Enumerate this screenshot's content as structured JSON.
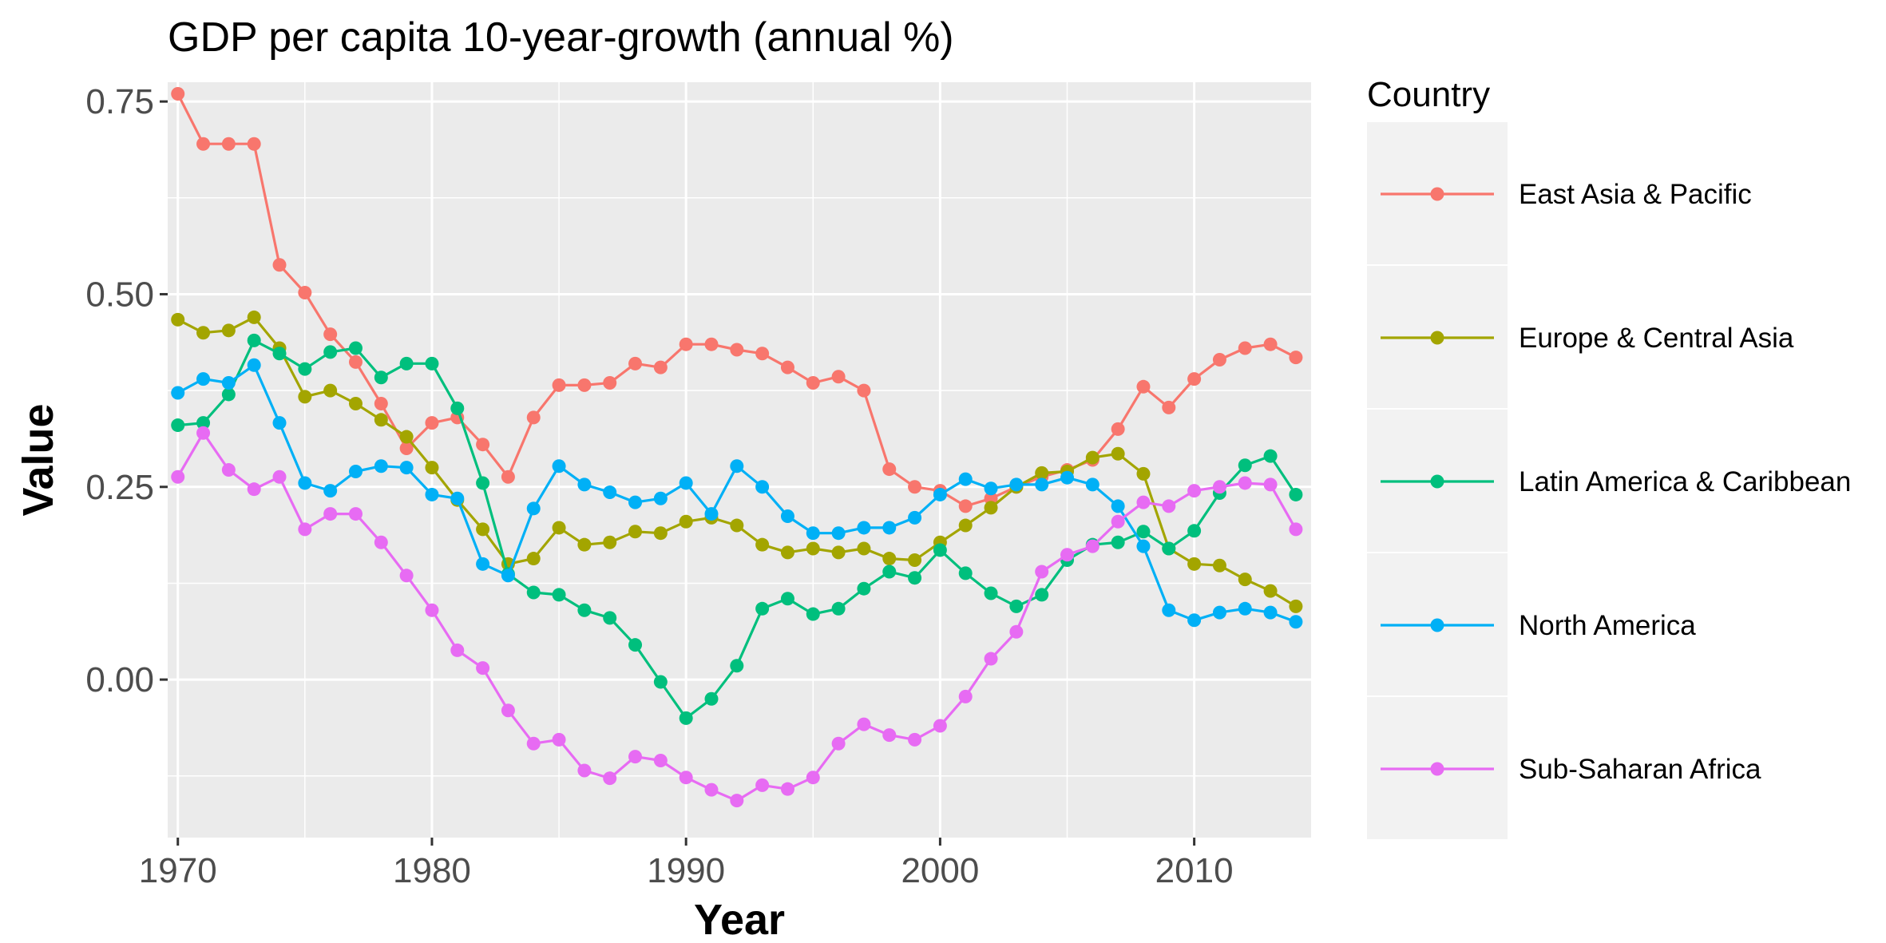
{
  "chart_data": {
    "type": "line",
    "title": "GDP per capita 10-year-growth (annual %)",
    "xlabel": "Year",
    "ylabel": "Value",
    "xlim": [
      1969.6,
      2014.6
    ],
    "ylim": [
      -0.205,
      0.775
    ],
    "x_ticks": [
      1970,
      1980,
      1990,
      2000,
      2010
    ],
    "x_tick_labels": [
      "1970",
      "1980",
      "1990",
      "2000",
      "2010"
    ],
    "y_ticks": [
      0.0,
      0.25,
      0.5,
      0.75
    ],
    "y_tick_labels": [
      "0.00",
      "0.25",
      "0.50",
      "0.75"
    ],
    "grid": true,
    "legend": {
      "title": "Country",
      "position": "right"
    },
    "x": [
      1970,
      1971,
      1972,
      1973,
      1974,
      1975,
      1976,
      1977,
      1978,
      1979,
      1980,
      1981,
      1982,
      1983,
      1984,
      1985,
      1986,
      1987,
      1988,
      1989,
      1990,
      1991,
      1992,
      1993,
      1994,
      1995,
      1996,
      1997,
      1998,
      1999,
      2000,
      2001,
      2002,
      2003,
      2004,
      2005,
      2006,
      2007,
      2008,
      2009,
      2010,
      2011,
      2012,
      2013,
      2014
    ],
    "series": [
      {
        "name": "East Asia & Pacific",
        "color": "#F8766D",
        "values": [
          0.76,
          0.695,
          0.695,
          0.695,
          0.538,
          0.502,
          0.448,
          0.412,
          0.358,
          0.3,
          0.333,
          0.34,
          0.305,
          0.263,
          0.34,
          0.382,
          0.382,
          0.385,
          0.41,
          0.405,
          0.435,
          0.435,
          0.428,
          0.423,
          0.405,
          0.385,
          0.393,
          0.375,
          0.273,
          0.25,
          0.245,
          0.225,
          0.235,
          0.25,
          0.263,
          0.272,
          0.285,
          0.325,
          0.38,
          0.353,
          0.39,
          0.415,
          0.43,
          0.435,
          0.418
        ]
      },
      {
        "name": "Europe & Central Asia",
        "color": "#A3A500",
        "values": [
          0.467,
          0.45,
          0.453,
          0.47,
          0.43,
          0.367,
          0.375,
          0.358,
          0.337,
          0.315,
          0.275,
          0.233,
          0.195,
          0.15,
          0.157,
          0.197,
          0.175,
          0.178,
          0.192,
          0.19,
          0.205,
          0.21,
          0.2,
          0.175,
          0.165,
          0.17,
          0.165,
          0.17,
          0.157,
          0.155,
          0.178,
          0.2,
          0.223,
          0.25,
          0.268,
          0.27,
          0.288,
          0.293,
          0.267,
          0.17,
          0.15,
          0.148,
          0.13,
          0.115,
          0.095
        ]
      },
      {
        "name": "Latin America & Caribbean",
        "color": "#00BF7D",
        "values": [
          0.33,
          0.333,
          0.37,
          0.44,
          0.423,
          0.403,
          0.425,
          0.43,
          0.392,
          0.41,
          0.41,
          0.352,
          0.255,
          0.137,
          0.113,
          0.11,
          0.09,
          0.08,
          0.045,
          -0.003,
          -0.05,
          -0.025,
          0.018,
          0.092,
          0.105,
          0.085,
          0.092,
          0.118,
          0.14,
          0.132,
          0.168,
          0.138,
          0.112,
          0.095,
          0.11,
          0.155,
          0.175,
          0.178,
          0.192,
          0.17,
          0.193,
          0.242,
          0.278,
          0.29,
          0.24
        ]
      },
      {
        "name": "North America",
        "color": "#00B0F6",
        "values": [
          0.372,
          0.39,
          0.385,
          0.408,
          0.333,
          0.255,
          0.245,
          0.27,
          0.277,
          0.275,
          0.24,
          0.235,
          0.15,
          0.135,
          0.222,
          0.277,
          0.253,
          0.243,
          0.23,
          0.235,
          0.255,
          0.215,
          0.277,
          0.25,
          0.212,
          0.19,
          0.19,
          0.197,
          0.197,
          0.21,
          0.24,
          0.26,
          0.248,
          0.253,
          0.253,
          0.262,
          0.253,
          0.225,
          0.173,
          0.09,
          0.077,
          0.087,
          0.092,
          0.087,
          0.075
        ]
      },
      {
        "name": "Sub-Saharan Africa",
        "color": "#E76BF3",
        "values": [
          0.263,
          0.32,
          0.272,
          0.247,
          0.263,
          0.195,
          0.215,
          0.215,
          0.178,
          0.135,
          0.09,
          0.038,
          0.015,
          -0.04,
          -0.083,
          -0.078,
          -0.118,
          -0.128,
          -0.1,
          -0.105,
          -0.127,
          -0.143,
          -0.157,
          -0.137,
          -0.142,
          -0.127,
          -0.083,
          -0.058,
          -0.072,
          -0.078,
          -0.06,
          -0.022,
          0.027,
          0.062,
          0.14,
          0.162,
          0.173,
          0.205,
          0.23,
          0.225,
          0.245,
          0.25,
          0.255,
          0.253,
          0.195
        ]
      }
    ]
  }
}
